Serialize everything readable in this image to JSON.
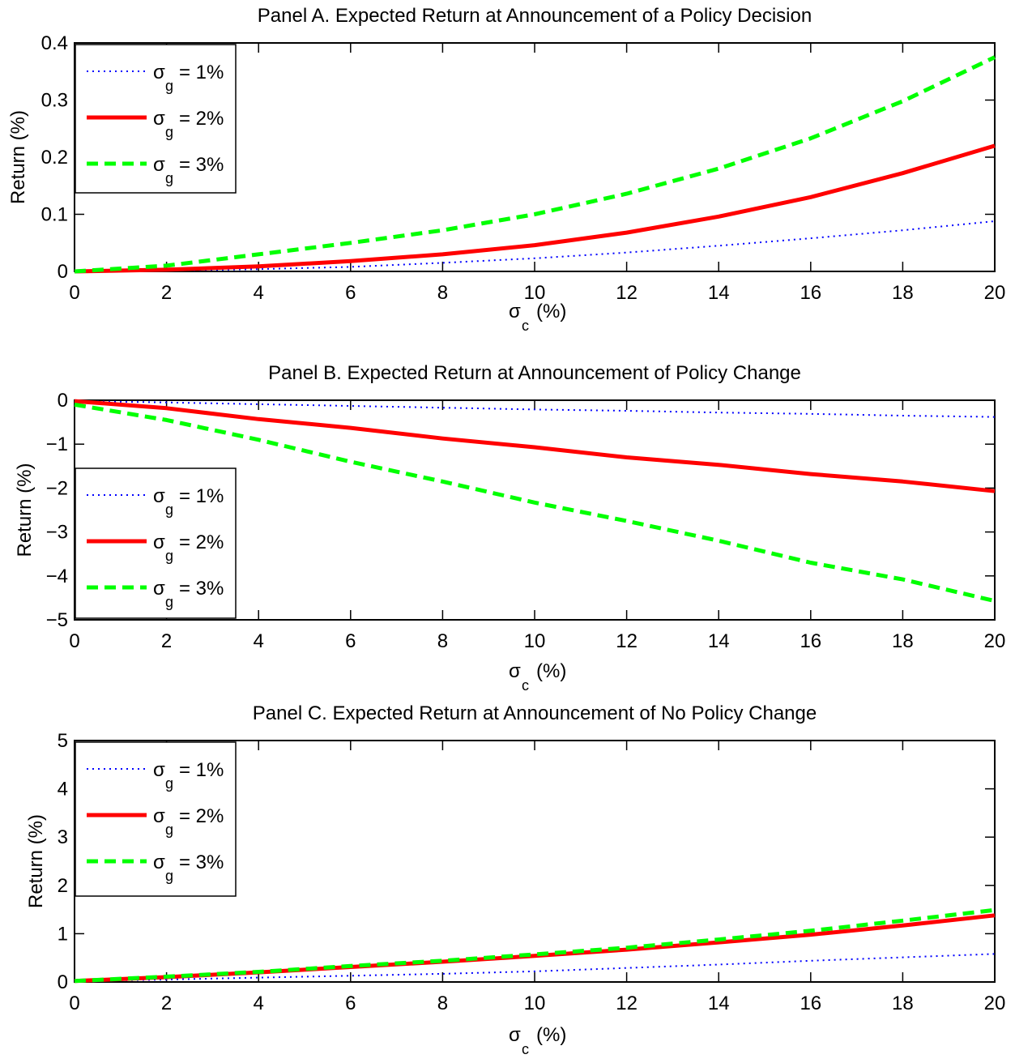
{
  "chart_data": [
    {
      "type": "line",
      "title": "Panel A. Expected Return at Announcement of a Policy Decision",
      "xlabel_symbol": "σ",
      "xlabel_sub": "c",
      "xlabel_unit": "(%)",
      "ylabel": "Return (%)",
      "xlim": [
        0,
        20
      ],
      "ylim": [
        0,
        0.4
      ],
      "xticks": [
        "0",
        "2",
        "4",
        "6",
        "8",
        "10",
        "12",
        "14",
        "16",
        "18",
        "20"
      ],
      "yticks": [
        "0",
        "0.1",
        "0.2",
        "0.3",
        "0.4"
      ],
      "grid": false,
      "legend_position": "top-left",
      "x": [
        0,
        2,
        4,
        6,
        8,
        10,
        12,
        14,
        16,
        18,
        20
      ],
      "series": [
        {
          "name": "σ_g = 1%",
          "legend_symbol": "σ",
          "legend_sub": "g",
          "legend_rest": "= 1%",
          "color": "#0000ff",
          "style": "dotted",
          "values": [
            0,
            0.0015,
            0.004,
            0.008,
            0.015,
            0.023,
            0.033,
            0.045,
            0.058,
            0.072,
            0.088
          ]
        },
        {
          "name": "σ_g = 2%",
          "legend_symbol": "σ",
          "legend_sub": "g",
          "legend_rest": "= 2%",
          "color": "#ff0000",
          "style": "solid",
          "values": [
            0,
            0.003,
            0.009,
            0.018,
            0.03,
            0.046,
            0.068,
            0.096,
            0.13,
            0.172,
            0.22
          ]
        },
        {
          "name": "σ_g = 3%",
          "legend_symbol": "σ",
          "legend_sub": "g",
          "legend_rest": "= 3%",
          "color": "#00ff00",
          "style": "dashed",
          "values": [
            0,
            0.01,
            0.03,
            0.05,
            0.072,
            0.1,
            0.136,
            0.18,
            0.233,
            0.298,
            0.375
          ]
        }
      ]
    },
    {
      "type": "line",
      "title": "Panel B. Expected Return at Announcement of Policy Change",
      "xlabel_symbol": "σ",
      "xlabel_sub": "c",
      "xlabel_unit": "(%)",
      "ylabel": "Return (%)",
      "xlim": [
        0,
        20
      ],
      "ylim": [
        -5,
        0
      ],
      "xticks": [
        "0",
        "2",
        "4",
        "6",
        "8",
        "10",
        "12",
        "14",
        "16",
        "18",
        "20"
      ],
      "yticks": [
        "−5",
        "−4",
        "−3",
        "−2",
        "−1",
        "0"
      ],
      "grid": false,
      "legend_position": "bottom-left",
      "x": [
        0,
        2,
        4,
        6,
        8,
        10,
        12,
        14,
        16,
        18,
        20
      ],
      "series": [
        {
          "name": "σ_g = 1%",
          "legend_symbol": "σ",
          "legend_sub": "g",
          "legend_rest": "= 1%",
          "color": "#0000ff",
          "style": "dotted",
          "values": [
            -0.02,
            -0.05,
            -0.09,
            -0.13,
            -0.17,
            -0.21,
            -0.24,
            -0.28,
            -0.31,
            -0.35,
            -0.38
          ]
        },
        {
          "name": "σ_g = 2%",
          "legend_symbol": "σ",
          "legend_sub": "g",
          "legend_rest": "= 2%",
          "color": "#ff0000",
          "style": "solid",
          "values": [
            -0.02,
            -0.18,
            -0.43,
            -0.63,
            -0.87,
            -1.07,
            -1.3,
            -1.47,
            -1.68,
            -1.85,
            -2.07
          ]
        },
        {
          "name": "σ_g = 3%",
          "legend_symbol": "σ",
          "legend_sub": "g",
          "legend_rest": "= 3%",
          "color": "#00ff00",
          "style": "dashed",
          "values": [
            -0.1,
            -0.45,
            -0.9,
            -1.4,
            -1.85,
            -2.33,
            -2.75,
            -3.2,
            -3.7,
            -4.08,
            -4.57
          ]
        }
      ]
    },
    {
      "type": "line",
      "title": "Panel C. Expected Return at Announcement of No Policy Change",
      "xlabel_symbol": "σ",
      "xlabel_sub": "c",
      "xlabel_unit": "(%)",
      "ylabel": "Return (%)",
      "xlim": [
        0,
        20
      ],
      "ylim": [
        0,
        5
      ],
      "xticks": [
        "0",
        "2",
        "4",
        "6",
        "8",
        "10",
        "12",
        "14",
        "16",
        "18",
        "20"
      ],
      "yticks": [
        "0",
        "1",
        "2",
        "3",
        "4",
        "5"
      ],
      "grid": false,
      "legend_position": "top-left",
      "x": [
        0,
        2,
        4,
        6,
        8,
        10,
        12,
        14,
        16,
        18,
        20
      ],
      "series": [
        {
          "name": "σ_g = 1%",
          "legend_symbol": "σ",
          "legend_sub": "g",
          "legend_rest": "= 1%",
          "color": "#0000ff",
          "style": "dotted",
          "values": [
            0.02,
            0.05,
            0.09,
            0.13,
            0.17,
            0.22,
            0.29,
            0.36,
            0.44,
            0.51,
            0.58
          ]
        },
        {
          "name": "σ_g = 2%",
          "legend_symbol": "σ",
          "legend_sub": "g",
          "legend_rest": "= 2%",
          "color": "#ff0000",
          "style": "solid",
          "values": [
            0.02,
            0.1,
            0.2,
            0.31,
            0.42,
            0.54,
            0.67,
            0.82,
            0.98,
            1.17,
            1.38
          ]
        },
        {
          "name": "σ_g = 3%",
          "legend_symbol": "σ",
          "legend_sub": "g",
          "legend_rest": "= 3%",
          "color": "#00ff00",
          "style": "dashed",
          "values": [
            0.02,
            0.11,
            0.21,
            0.33,
            0.44,
            0.57,
            0.71,
            0.88,
            1.06,
            1.27,
            1.49
          ]
        }
      ]
    }
  ]
}
